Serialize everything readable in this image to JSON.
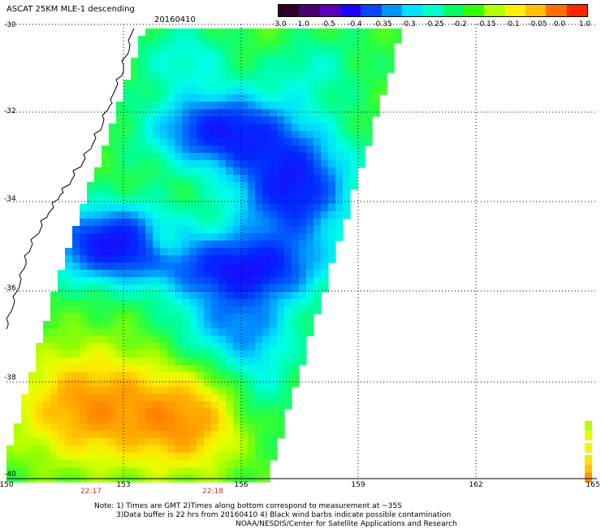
{
  "header": {
    "product": "ASCAT 25KM MLE-1 descending",
    "date": "20160410"
  },
  "colorbar": {
    "labels": [
      "-3.0",
      "-1.0",
      "-0.5",
      "-0.4",
      "-0.35",
      "-0.3",
      "-0.25",
      "-0.2",
      "-0.15",
      "-0.1",
      "-0.05",
      "0.0",
      "1.0"
    ],
    "colors": [
      "#2b0024",
      "#4b006e",
      "#5b00b8",
      "#1f00ff",
      "#0a46ff",
      "#0096ff",
      "#00e1ff",
      "#00ffc8",
      "#00ff64",
      "#32ff00",
      "#b4ff00",
      "#fff000",
      "#ffc000",
      "#ff7000",
      "#ff2600"
    ]
  },
  "axes": {
    "lat_labels": [
      "-30",
      "-32",
      "-34",
      "-36",
      "-38",
      "-40"
    ],
    "lon_labels": [
      "150",
      "153",
      "156",
      "159",
      "162",
      "165"
    ]
  },
  "times": [
    "22:17",
    "22:18"
  ],
  "notes": [
    "Note: 1) Times are GMT 2)Times along bottom correspond to measurement at ~35S",
    "3)Data buffer is 22 hrs from 20160410 4) Black wind barbs indicate possible contamination",
    "NOAA/NESDIS/Center for Satellite Applications and Research"
  ]
}
